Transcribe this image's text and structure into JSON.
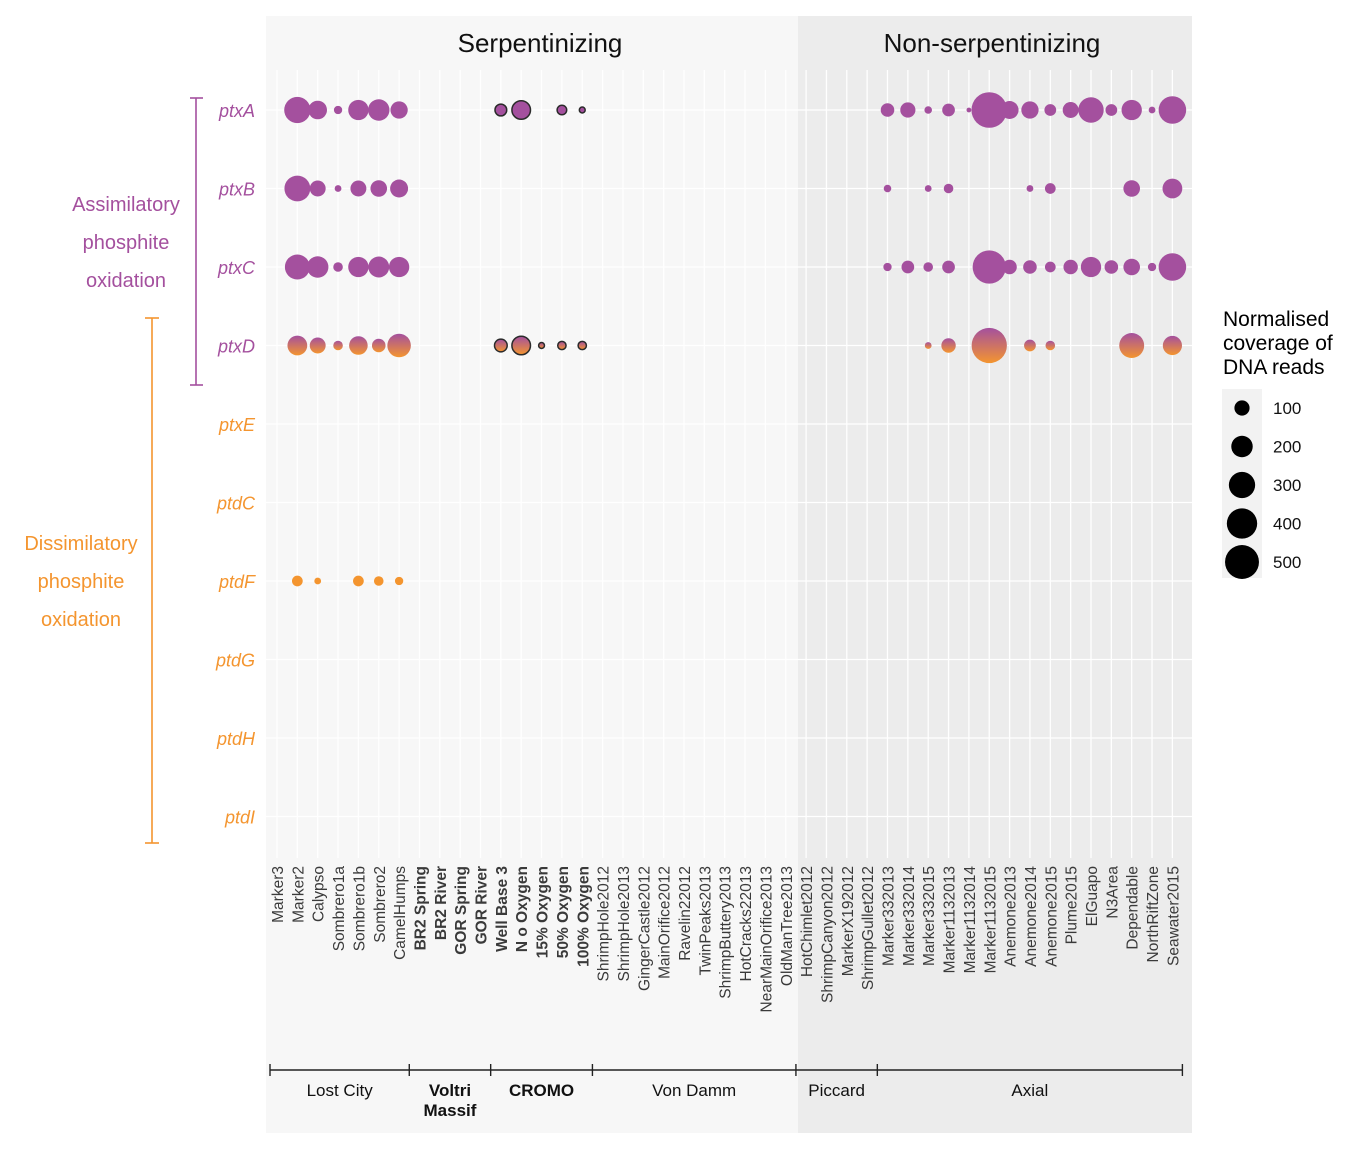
{
  "headers": {
    "left": "Serpentinizing",
    "right": "Non-serpentinizing"
  },
  "colors": {
    "purple": "#a4509e",
    "orange": "#f4952f",
    "panel_left": "#f7f7f7",
    "panel_right": "#ececec",
    "text": "#333333"
  },
  "categories": {
    "assimilatory": {
      "lines": [
        "Assimilatory",
        "phosphite",
        "oxidation"
      ],
      "color_key": "purple"
    },
    "dissimilatory": {
      "lines": [
        "Dissimilatory",
        "phosphite",
        "oxidation"
      ],
      "color_key": "orange"
    }
  },
  "legend": {
    "title_lines": [
      "Normalised",
      "coverage of",
      "DNA reads"
    ],
    "entries": [
      "100",
      "200",
      "300",
      "400",
      "500"
    ]
  },
  "chart_data": {
    "type": "scatter",
    "genes": [
      "ptxA",
      "ptxB",
      "ptxC",
      "ptxD",
      "ptxE",
      "ptdC",
      "ptdF",
      "ptdG",
      "ptdH",
      "ptdI"
    ],
    "gene_colors": [
      "purple",
      "purple",
      "purple",
      "gradient",
      "orange",
      "orange",
      "orange",
      "orange",
      "orange",
      "orange"
    ],
    "samples": [
      "Marker3",
      "Marker2",
      "Calypso",
      "Sombrero1a",
      "Sombrero1b",
      "Sombrero2",
      "CamelHumps",
      "BR2 Spring",
      "BR2 River",
      "GOR Spring",
      "GOR River",
      "Well Base 3",
      "N o Oxygen",
      "15% Oxygen",
      "50% Oxygen",
      "100% Oxygen",
      "ShrimpHole2012",
      "ShrimpHole2013",
      "GingerCastle2012",
      "MainOrifice2012",
      "Ravelin22012",
      "TwinPeaks2013",
      "ShrimpButtery2013",
      "HotCracks22013",
      "NearMainOrifice2013",
      "OldManTree2013",
      "HotChimlet2012",
      "ShrimpCanyon2012",
      "MarkerX192012",
      "ShrimpGullet2012",
      "Marker332013",
      "Marker332014",
      "Marker332015",
      "Marker1132013",
      "Marker1132014",
      "Marker1132015",
      "Anemone2013",
      "Anemone2014",
      "Anemone2015",
      "Plume2015",
      "ElGuapo",
      "N3Area",
      "Dependable",
      "NorthRiftZone",
      "Seawater2015"
    ],
    "bold_samples": [
      "BR2 Spring",
      "BR2 River",
      "GOR Spring",
      "GOR River",
      "Well Base 3",
      "N o Oxygen",
      "15% Oxygen",
      "50% Oxygen",
      "100% Oxygen"
    ],
    "sites": [
      {
        "name": "Lost City",
        "first": 0,
        "last": 6,
        "bold": false
      },
      {
        "name": "Voltri\nMassif",
        "first": 7,
        "last": 10,
        "bold": true
      },
      {
        "name": "CROMO",
        "first": 11,
        "last": 15,
        "bold": true
      },
      {
        "name": "Von Damm",
        "first": 16,
        "last": 25,
        "bold": false
      },
      {
        "name": "Piccard",
        "first": 26,
        "last": 29,
        "bold": false
      },
      {
        "name": "Axial",
        "first": 30,
        "last": 44,
        "bold": false
      }
    ],
    "size_legend": [
      100,
      200,
      300,
      400,
      500
    ],
    "points": [
      [
        "ptxA",
        "Marker2",
        300
      ],
      [
        "ptxA",
        "Calypso",
        150
      ],
      [
        "ptxA",
        "Sombrero1a",
        30
      ],
      [
        "ptxA",
        "Sombrero1b",
        180
      ],
      [
        "ptxA",
        "Sombrero2",
        200
      ],
      [
        "ptxA",
        "CamelHumps",
        130
      ],
      [
        "ptxA",
        "Well Base 3",
        60,
        "outline"
      ],
      [
        "ptxA",
        "N o Oxygen",
        150,
        "outline"
      ],
      [
        "ptxA",
        "50% Oxygen",
        40,
        "outline"
      ],
      [
        "ptxA",
        "100% Oxygen",
        15,
        "outline"
      ],
      [
        "ptxA",
        "Marker332013",
        80
      ],
      [
        "ptxA",
        "Marker332014",
        100
      ],
      [
        "ptxA",
        "Marker332015",
        25
      ],
      [
        "ptxA",
        "Marker1132013",
        70
      ],
      [
        "ptxA",
        "Marker1132014",
        10
      ],
      [
        "ptxA",
        "Marker1132015",
        550
      ],
      [
        "ptxA",
        "Anemone2013",
        140
      ],
      [
        "ptxA",
        "Anemone2014",
        130
      ],
      [
        "ptxA",
        "Anemone2015",
        60
      ],
      [
        "ptxA",
        "Plume2015",
        110
      ],
      [
        "ptxA",
        "ElGuapo",
        280
      ],
      [
        "ptxA",
        "N3Area",
        60
      ],
      [
        "ptxA",
        "Dependable",
        180
      ],
      [
        "ptxA",
        "NorthRiftZone",
        20
      ],
      [
        "ptxA",
        "Seawater2015",
        330
      ],
      [
        "ptxB",
        "Marker2",
        290
      ],
      [
        "ptxB",
        "Calypso",
        110
      ],
      [
        "ptxB",
        "Sombrero1a",
        20
      ],
      [
        "ptxB",
        "Sombrero1b",
        110
      ],
      [
        "ptxB",
        "Sombrero2",
        120
      ],
      [
        "ptxB",
        "CamelHumps",
        140
      ],
      [
        "ptxB",
        "Marker332013",
        25
      ],
      [
        "ptxB",
        "Marker332015",
        20
      ],
      [
        "ptxB",
        "Marker1132013",
        40
      ],
      [
        "ptxB",
        "Anemone2014",
        20
      ],
      [
        "ptxB",
        "Anemone2015",
        50
      ],
      [
        "ptxB",
        "Dependable",
        120
      ],
      [
        "ptxB",
        "Seawater2015",
        170
      ],
      [
        "ptxC",
        "Marker2",
        270
      ],
      [
        "ptxC",
        "Calypso",
        200
      ],
      [
        "ptxC",
        "Sombrero1a",
        40
      ],
      [
        "ptxC",
        "Sombrero1b",
        180
      ],
      [
        "ptxC",
        "Sombrero2",
        190
      ],
      [
        "ptxC",
        "CamelHumps",
        180
      ],
      [
        "ptxC",
        "Marker332013",
        30
      ],
      [
        "ptxC",
        "Marker332014",
        70
      ],
      [
        "ptxC",
        "Marker332015",
        40
      ],
      [
        "ptxC",
        "Marker1132013",
        70
      ],
      [
        "ptxC",
        "Marker1132015",
        480
      ],
      [
        "ptxC",
        "Anemone2013",
        90
      ],
      [
        "ptxC",
        "Anemone2014",
        80
      ],
      [
        "ptxC",
        "Anemone2015",
        50
      ],
      [
        "ptxC",
        "Plume2015",
        90
      ],
      [
        "ptxC",
        "ElGuapo",
        180
      ],
      [
        "ptxC",
        "N3Area",
        80
      ],
      [
        "ptxC",
        "Dependable",
        120
      ],
      [
        "ptxC",
        "NorthRiftZone",
        30
      ],
      [
        "ptxC",
        "Seawater2015",
        330
      ],
      [
        "ptxD",
        "Marker2",
        170
      ],
      [
        "ptxD",
        "Calypso",
        110
      ],
      [
        "ptxD",
        "Sombrero1a",
        40
      ],
      [
        "ptxD",
        "Sombrero1b",
        150
      ],
      [
        "ptxD",
        "Sombrero2",
        80
      ],
      [
        "ptxD",
        "CamelHumps",
        240
      ],
      [
        "ptxD",
        "Well Base 3",
        70,
        "outline"
      ],
      [
        "ptxD",
        "N o Oxygen",
        150,
        "outline"
      ],
      [
        "ptxD",
        "15% Oxygen",
        15,
        "outline"
      ],
      [
        "ptxD",
        "50% Oxygen",
        30,
        "outline"
      ],
      [
        "ptxD",
        "100% Oxygen",
        30,
        "outline"
      ],
      [
        "ptxD",
        "Marker332015",
        20
      ],
      [
        "ptxD",
        "Marker1132013",
        90
      ],
      [
        "ptxD",
        "Marker1132015",
        540
      ],
      [
        "ptxD",
        "Anemone2014",
        60
      ],
      [
        "ptxD",
        "Anemone2015",
        40
      ],
      [
        "ptxD",
        "Dependable",
        270
      ],
      [
        "ptxD",
        "Seawater2015",
        160
      ],
      [
        "ptdF",
        "Marker2",
        50
      ],
      [
        "ptdF",
        "Calypso",
        20
      ],
      [
        "ptdF",
        "Sombrero1b",
        50
      ],
      [
        "ptdF",
        "Sombrero2",
        40
      ],
      [
        "ptdF",
        "CamelHumps",
        30
      ]
    ]
  }
}
